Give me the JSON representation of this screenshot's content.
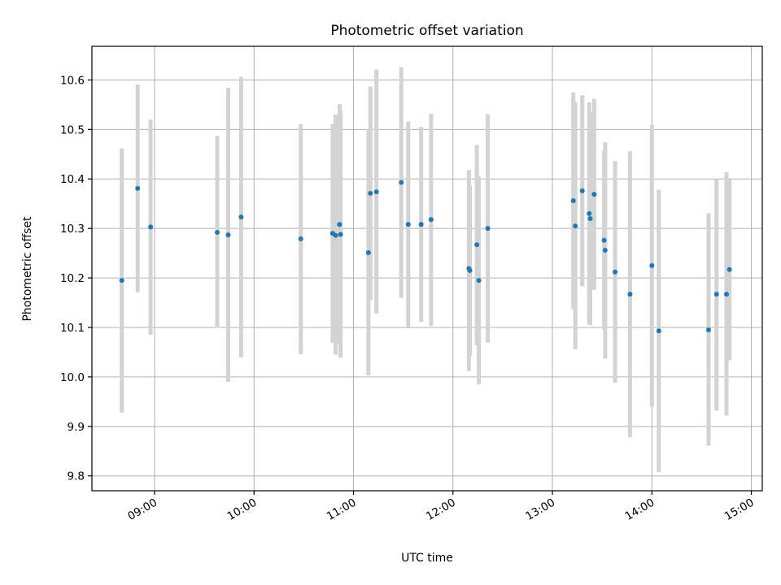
{
  "chart_data": {
    "type": "scatter",
    "title": "Photometric offset variation",
    "xlabel": "UTC time",
    "ylabel": "Photometric offset",
    "grid": true,
    "legend": "none",
    "colors": {
      "point": "#1f77b4",
      "errorbar": "#d3d3d3",
      "grid": "#b0b0b0"
    },
    "xlim": [
      8.37,
      15.11
    ],
    "ylim": [
      9.77,
      10.668
    ],
    "x_ticks": [
      9,
      10,
      11,
      12,
      13,
      14,
      15
    ],
    "x_tick_labels": [
      "09:00",
      "10:00",
      "11:00",
      "12:00",
      "13:00",
      "14:00",
      "15:00"
    ],
    "y_ticks": [
      9.8,
      9.9,
      10.0,
      10.1,
      10.2,
      10.3,
      10.4,
      10.5,
      10.6
    ],
    "y_tick_labels": [
      "9.8",
      "9.9",
      "10.0",
      "10.1",
      "10.2",
      "10.3",
      "10.4",
      "10.5",
      "10.6"
    ],
    "series": [
      {
        "name": "offset",
        "points": [
          {
            "x": 8.67,
            "y": 10.195,
            "lo": 9.928,
            "hi": 10.462
          },
          {
            "x": 8.83,
            "y": 10.381,
            "lo": 10.171,
            "hi": 10.591
          },
          {
            "x": 8.96,
            "y": 10.303,
            "lo": 10.085,
            "hi": 10.52
          },
          {
            "x": 9.63,
            "y": 10.292,
            "lo": 10.099,
            "hi": 10.487
          },
          {
            "x": 9.74,
            "y": 10.287,
            "lo": 9.99,
            "hi": 10.584
          },
          {
            "x": 9.87,
            "y": 10.323,
            "lo": 10.039,
            "hi": 10.606
          },
          {
            "x": 10.47,
            "y": 10.279,
            "lo": 10.046,
            "hi": 10.511
          },
          {
            "x": 10.79,
            "y": 10.29,
            "lo": 10.069,
            "hi": 10.511
          },
          {
            "x": 10.82,
            "y": 10.286,
            "lo": 10.045,
            "hi": 10.53
          },
          {
            "x": 10.86,
            "y": 10.308,
            "lo": 10.066,
            "hi": 10.551
          },
          {
            "x": 10.87,
            "y": 10.288,
            "lo": 10.039,
            "hi": 10.539
          },
          {
            "x": 11.15,
            "y": 10.251,
            "lo": 10.003,
            "hi": 10.5
          },
          {
            "x": 11.17,
            "y": 10.371,
            "lo": 10.155,
            "hi": 10.587
          },
          {
            "x": 11.23,
            "y": 10.374,
            "lo": 10.128,
            "hi": 10.621
          },
          {
            "x": 11.48,
            "y": 10.393,
            "lo": 10.16,
            "hi": 10.626
          },
          {
            "x": 11.55,
            "y": 10.308,
            "lo": 10.101,
            "hi": 10.516
          },
          {
            "x": 11.68,
            "y": 10.308,
            "lo": 10.111,
            "hi": 10.505
          },
          {
            "x": 11.78,
            "y": 10.318,
            "lo": 10.103,
            "hi": 10.532
          },
          {
            "x": 12.16,
            "y": 10.219,
            "lo": 10.012,
            "hi": 10.418
          },
          {
            "x": 12.17,
            "y": 10.215,
            "lo": 10.042,
            "hi": 10.388
          },
          {
            "x": 12.24,
            "y": 10.267,
            "lo": 10.064,
            "hi": 10.469
          },
          {
            "x": 12.26,
            "y": 10.195,
            "lo": 9.985,
            "hi": 10.405
          },
          {
            "x": 12.35,
            "y": 10.3,
            "lo": 10.069,
            "hi": 10.531
          },
          {
            "x": 13.21,
            "y": 10.356,
            "lo": 10.137,
            "hi": 10.575
          },
          {
            "x": 13.23,
            "y": 10.305,
            "lo": 10.056,
            "hi": 10.555
          },
          {
            "x": 13.3,
            "y": 10.376,
            "lo": 10.183,
            "hi": 10.569
          },
          {
            "x": 13.37,
            "y": 10.33,
            "lo": 10.106,
            "hi": 10.555
          },
          {
            "x": 13.38,
            "y": 10.32,
            "lo": 10.105,
            "hi": 10.535
          },
          {
            "x": 13.42,
            "y": 10.369,
            "lo": 10.176,
            "hi": 10.562
          },
          {
            "x": 13.52,
            "y": 10.276,
            "lo": 10.095,
            "hi": 10.457
          },
          {
            "x": 13.53,
            "y": 10.256,
            "lo": 10.037,
            "hi": 10.474
          },
          {
            "x": 13.63,
            "y": 10.212,
            "lo": 9.988,
            "hi": 10.436
          },
          {
            "x": 13.78,
            "y": 10.167,
            "lo": 9.878,
            "hi": 10.456
          },
          {
            "x": 14.0,
            "y": 10.225,
            "lo": 9.94,
            "hi": 10.509
          },
          {
            "x": 14.07,
            "y": 10.093,
            "lo": 9.808,
            "hi": 10.378
          },
          {
            "x": 14.57,
            "y": 10.095,
            "lo": 9.861,
            "hi": 10.331
          },
          {
            "x": 14.65,
            "y": 10.167,
            "lo": 9.932,
            "hi": 10.399
          },
          {
            "x": 14.75,
            "y": 10.167,
            "lo": 9.922,
            "hi": 10.414
          },
          {
            "x": 14.78,
            "y": 10.217,
            "lo": 10.034,
            "hi": 10.4
          }
        ]
      }
    ]
  }
}
